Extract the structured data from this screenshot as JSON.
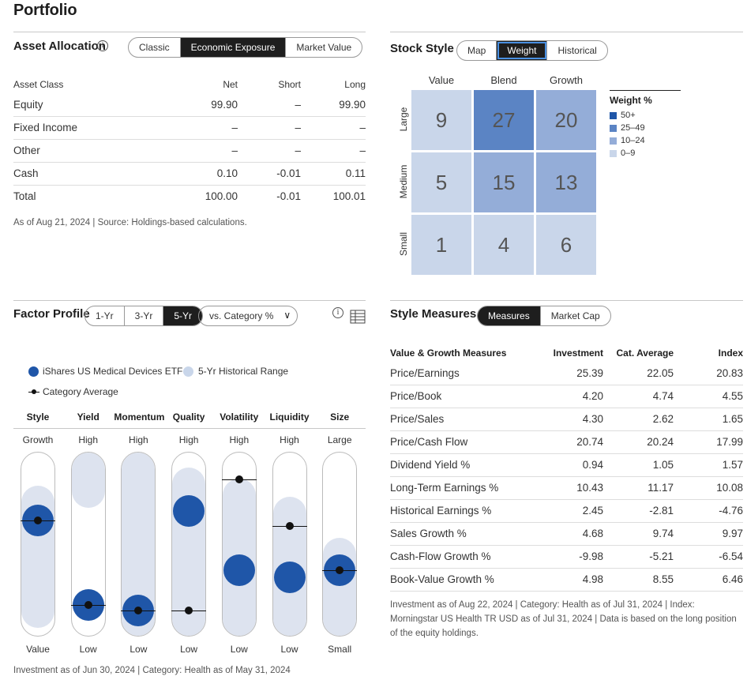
{
  "page_title": "Portfolio",
  "asset_allocation": {
    "title": "Asset Allocation",
    "tabs": [
      "Classic",
      "Economic Exposure",
      "Market Value"
    ],
    "active_tab": "Economic Exposure",
    "columns": [
      "Asset Class",
      "Net",
      "Short",
      "Long"
    ],
    "rows": [
      [
        "Equity",
        "99.90",
        "–",
        "99.90"
      ],
      [
        "Fixed Income",
        "–",
        "–",
        "–"
      ],
      [
        "Other",
        "–",
        "–",
        "–"
      ],
      [
        "Cash",
        "0.10",
        "-0.01",
        "0.11"
      ]
    ],
    "total": [
      "Total",
      "100.00",
      "-0.01",
      "100.01"
    ],
    "note": "As of Aug 21, 2024 | Source: Holdings-based calculations."
  },
  "stock_style": {
    "title": "Stock Style",
    "tabs": [
      "Map",
      "Weight",
      "Historical"
    ],
    "active_tab": "Weight",
    "col_labels": [
      "Value",
      "Blend",
      "Growth"
    ],
    "row_labels": [
      "Large",
      "Medium",
      "Small"
    ],
    "cells": [
      [
        9,
        27,
        20
      ],
      [
        5,
        15,
        13
      ],
      [
        1,
        4,
        6
      ]
    ],
    "legend_title": "Weight %",
    "legend": [
      {
        "label": "50+",
        "color": "#1f56a8"
      },
      {
        "label": "25–49",
        "color": "#5b84c4"
      },
      {
        "label": "10–24",
        "color": "#94add8"
      },
      {
        "label": "0–9",
        "color": "#c9d6ea"
      }
    ]
  },
  "factor_profile": {
    "title": "Factor Profile",
    "tabs": [
      "1-Yr",
      "3-Yr",
      "5-Yr"
    ],
    "active_tab": "5-Yr",
    "dropdown": "vs. Category %",
    "legend": {
      "fund": "iShares US Medical Devices ETF",
      "range": "5-Yr Historical Range",
      "category": "Category Average"
    },
    "factors": [
      {
        "name": "Style",
        "top": "Growth",
        "bottom": "Value",
        "range": [
          0.18,
          0.95
        ],
        "fund": 0.37,
        "category": 0.37
      },
      {
        "name": "Yield",
        "top": "High",
        "bottom": "Low",
        "range": [
          0.0,
          0.3
        ],
        "fund": 0.83,
        "category": 0.83
      },
      {
        "name": "Momentum",
        "top": "High",
        "bottom": "Low",
        "range": [
          0.0,
          1.0
        ],
        "fund": 0.86,
        "category": 0.86
      },
      {
        "name": "Quality",
        "top": "High",
        "bottom": "Low",
        "range": [
          0.08,
          1.0
        ],
        "fund": 0.32,
        "category": 0.86
      },
      {
        "name": "Volatility",
        "top": "High",
        "bottom": "Low",
        "range": [
          0.14,
          1.0
        ],
        "fund": 0.64,
        "category": 0.15
      },
      {
        "name": "Liquidity",
        "top": "High",
        "bottom": "Low",
        "range": [
          0.24,
          1.0
        ],
        "fund": 0.68,
        "category": 0.4
      },
      {
        "name": "Size",
        "top": "Large",
        "bottom": "Small",
        "range": [
          0.46,
          1.0
        ],
        "fund": 0.64,
        "category": 0.64
      }
    ],
    "note": "Investment as of Jun 30, 2024 | Category: Health as of May 31, 2024"
  },
  "style_measures": {
    "title": "Style Measures",
    "tabs": [
      "Measures",
      "Market Cap"
    ],
    "active_tab": "Measures",
    "columns": [
      "Value & Growth Measures",
      "Investment",
      "Cat. Average",
      "Index"
    ],
    "rows": [
      [
        "Price/Earnings",
        "25.39",
        "22.05",
        "20.83"
      ],
      [
        "Price/Book",
        "4.20",
        "4.74",
        "4.55"
      ],
      [
        "Price/Sales",
        "4.30",
        "2.62",
        "1.65"
      ],
      [
        "Price/Cash Flow",
        "20.74",
        "20.24",
        "17.99"
      ],
      [
        "Dividend Yield %",
        "0.94",
        "1.05",
        "1.57"
      ],
      [
        "Long-Term Earnings %",
        "10.43",
        "11.17",
        "10.08"
      ],
      [
        "Historical Earnings %",
        "2.45",
        "-2.81",
        "-4.76"
      ],
      [
        "Sales Growth %",
        "4.68",
        "9.74",
        "9.97"
      ],
      [
        "Cash-Flow Growth %",
        "-9.98",
        "-5.21",
        "-6.54"
      ],
      [
        "Book-Value Growth %",
        "4.98",
        "8.55",
        "6.46"
      ]
    ],
    "note": "Investment as of Aug 22, 2024 | Category: Health as of Jul 31, 2024 | Index: Morningstar US Health TR USD as of Jul 31, 2024 | Data is based on the long position of the equity holdings."
  }
}
